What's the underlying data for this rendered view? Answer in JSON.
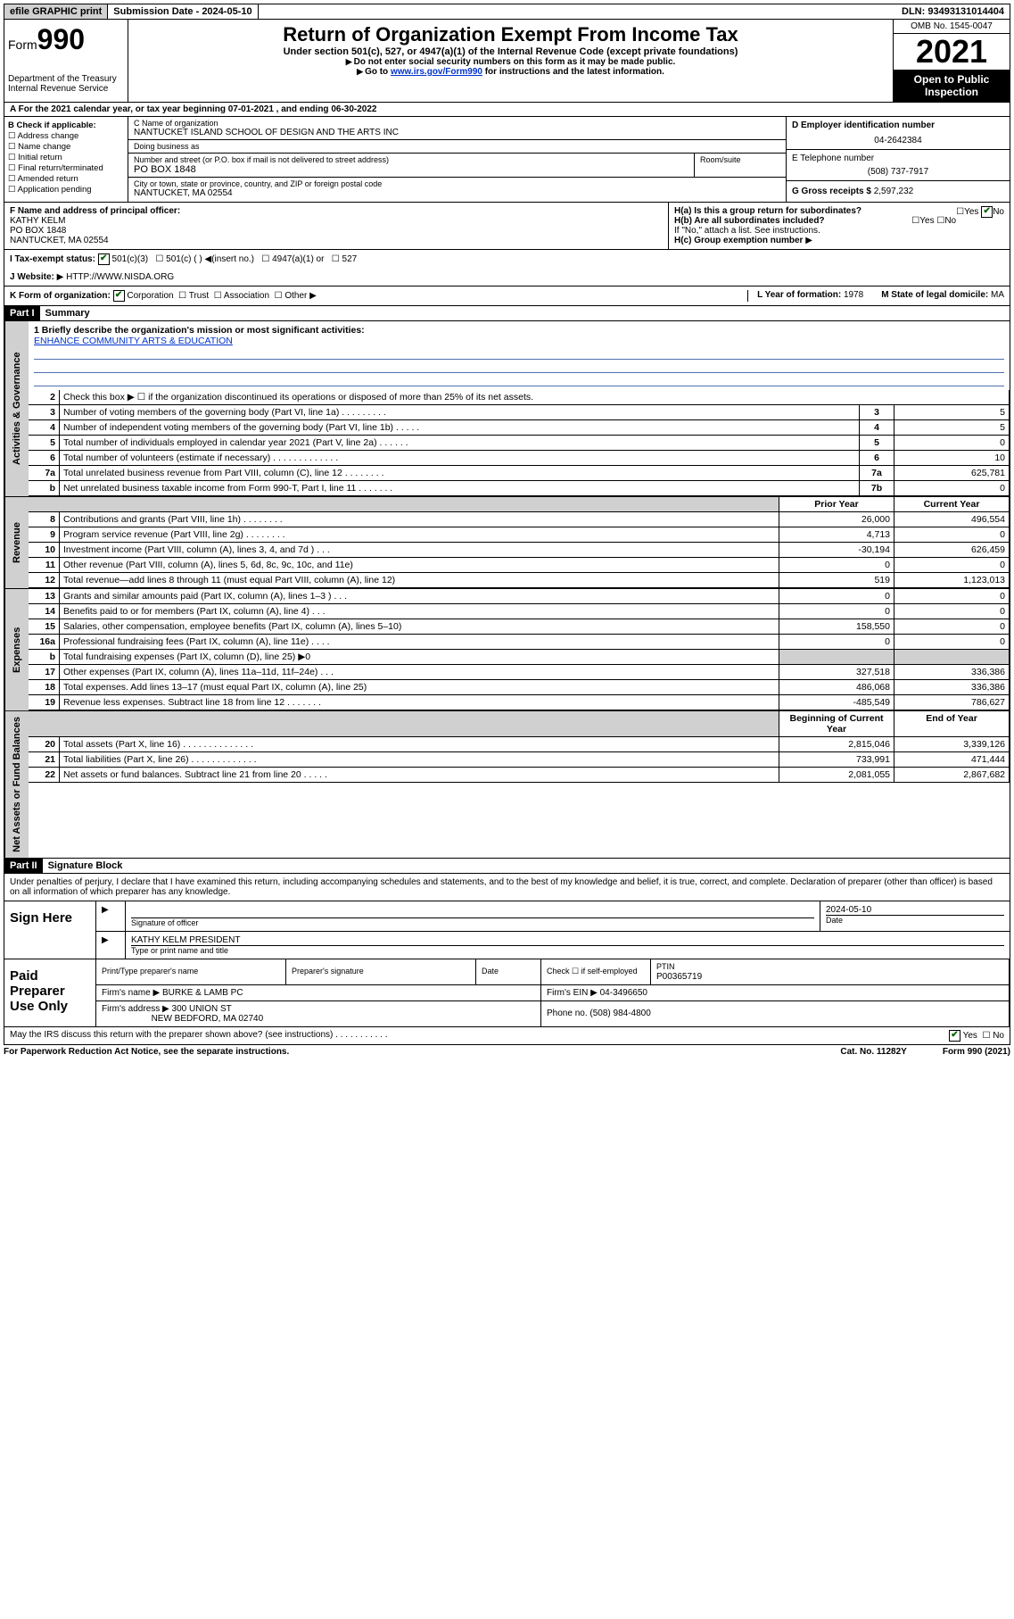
{
  "topbar": {
    "efile_label": "efile GRAPHIC print",
    "submission_label": "Submission Date - 2024-05-10",
    "dln_label": "DLN: 93493131014404"
  },
  "header": {
    "form_prefix": "Form",
    "form_number": "990",
    "dept": "Department of the Treasury",
    "irs": "Internal Revenue Service",
    "title": "Return of Organization Exempt From Income Tax",
    "sub1": "Under section 501(c), 527, or 4947(a)(1) of the Internal Revenue Code (except private foundations)",
    "sub2": "Do not enter social security numbers on this form as it may be made public.",
    "sub3_prefix": "Go to ",
    "sub3_link": "www.irs.gov/Form990",
    "sub3_suffix": " for instructions and the latest information.",
    "omb": "OMB No. 1545-0047",
    "year": "2021",
    "open1": "Open to Public",
    "open2": "Inspection"
  },
  "row_a": "A For the 2021 calendar year, or tax year beginning 07-01-2021   , and ending 06-30-2022",
  "col_b": {
    "label": "B Check if applicable:",
    "opt1": "Address change",
    "opt2": "Name change",
    "opt3": "Initial return",
    "opt4": "Final return/terminated",
    "opt5": "Amended return",
    "opt6": "Application pending"
  },
  "col_c": {
    "name_label": "C Name of organization",
    "name": "NANTUCKET ISLAND SCHOOL OF DESIGN AND THE ARTS INC",
    "dba_label": "Doing business as",
    "dba": "",
    "addr_label": "Number and street (or P.O. box if mail is not delivered to street address)",
    "room_label": "Room/suite",
    "addr": "PO BOX 1848",
    "city_label": "City or town, state or province, country, and ZIP or foreign postal code",
    "city": "NANTUCKET, MA  02554"
  },
  "col_d": {
    "ein_label": "D Employer identification number",
    "ein": "04-2642384",
    "phone_label": "E Telephone number",
    "phone": "(508) 737-7917",
    "gross_label": "G Gross receipts $",
    "gross": "2,597,232"
  },
  "row_f": {
    "label": "F  Name and address of principal officer:",
    "name": "KATHY KELM",
    "addr1": "PO BOX 1848",
    "addr2": "NANTUCKET, MA  02554"
  },
  "row_h": {
    "ha_label": "H(a)  Is this a group return for subordinates?",
    "hb_label": "H(b)  Are all subordinates included?",
    "hb_note": "If \"No,\" attach a list. See instructions.",
    "hc_label": "H(c)  Group exemption number",
    "yes": "Yes",
    "no": "No"
  },
  "row_i": {
    "label": "I  Tax-exempt status:",
    "opt1": "501(c)(3)",
    "opt2": "501(c) (  )",
    "opt2_hint": "(insert no.)",
    "opt3": "4947(a)(1) or",
    "opt4": "527"
  },
  "row_j": {
    "label": "J  Website:",
    "value": "HTTP://WWW.NISDA.ORG"
  },
  "row_k": {
    "label": "K Form of organization:",
    "opt1": "Corporation",
    "opt2": "Trust",
    "opt3": "Association",
    "opt4": "Other",
    "l_label": "L Year of formation:",
    "l_value": "1978",
    "m_label": "M State of legal domicile:",
    "m_value": "MA"
  },
  "part1": {
    "header": "Part I",
    "title": "Summary",
    "side_gov": "Activities & Governance",
    "side_rev": "Revenue",
    "side_exp": "Expenses",
    "side_net": "Net Assets or Fund Balances",
    "mission_label": "1   Briefly describe the organization's mission or most significant activities:",
    "mission": "ENHANCE COMMUNITY ARTS & EDUCATION",
    "prior_year": "Prior Year",
    "current_year": "Current Year",
    "begin_year": "Beginning of Current Year",
    "end_year": "End of Year"
  },
  "gov_lines": [
    {
      "n": "2",
      "d": "Check this box ▶ ☐  if the organization discontinued its operations or disposed of more than 25% of its net assets.",
      "box": "",
      "v": ""
    },
    {
      "n": "3",
      "d": "Number of voting members of the governing body (Part VI, line 1a)   .    .    .    .    .    .    .    .    .",
      "box": "3",
      "v": "5"
    },
    {
      "n": "4",
      "d": "Number of independent voting members of the governing body (Part VI, line 1b)   .    .    .    .    .",
      "box": "4",
      "v": "5"
    },
    {
      "n": "5",
      "d": "Total number of individuals employed in calendar year 2021 (Part V, line 2a)   .    .    .    .    .    .",
      "box": "5",
      "v": "0"
    },
    {
      "n": "6",
      "d": "Total number of volunteers (estimate if necessary)   .    .    .    .    .    .    .    .    .    .    .    .    .",
      "box": "6",
      "v": "10"
    },
    {
      "n": "7a",
      "d": "Total unrelated business revenue from Part VIII, column (C), line 12   .    .    .    .    .    .    .    .",
      "box": "7a",
      "v": "625,781"
    },
    {
      "n": "b",
      "d": "Net unrelated business taxable income from Form 990-T, Part I, line 11   .    .    .    .    .    .    .",
      "box": "7b",
      "v": "0"
    }
  ],
  "rev_lines": [
    {
      "n": "8",
      "d": "Contributions and grants (Part VIII, line 1h)   .    .    .    .    .    .    .    .",
      "p": "26,000",
      "c": "496,554"
    },
    {
      "n": "9",
      "d": "Program service revenue (Part VIII, line 2g)   .    .    .    .    .    .    .    .",
      "p": "4,713",
      "c": "0"
    },
    {
      "n": "10",
      "d": "Investment income (Part VIII, column (A), lines 3, 4, and 7d )   .    .    .",
      "p": "-30,194",
      "c": "626,459"
    },
    {
      "n": "11",
      "d": "Other revenue (Part VIII, column (A), lines 5, 6d, 8c, 9c, 10c, and 11e)",
      "p": "0",
      "c": "0"
    },
    {
      "n": "12",
      "d": "Total revenue—add lines 8 through 11 (must equal Part VIII, column (A), line 12)",
      "p": "519",
      "c": "1,123,013"
    }
  ],
  "exp_lines": [
    {
      "n": "13",
      "d": "Grants and similar amounts paid (Part IX, column (A), lines 1–3 )   .    .    .",
      "p": "0",
      "c": "0"
    },
    {
      "n": "14",
      "d": "Benefits paid to or for members (Part IX, column (A), line 4)   .    .    .",
      "p": "0",
      "c": "0"
    },
    {
      "n": "15",
      "d": "Salaries, other compensation, employee benefits (Part IX, column (A), lines 5–10)",
      "p": "158,550",
      "c": "0"
    },
    {
      "n": "16a",
      "d": "Professional fundraising fees (Part IX, column (A), line 11e)   .    .    .    .",
      "p": "0",
      "c": "0"
    },
    {
      "n": "b",
      "d": "Total fundraising expenses (Part IX, column (D), line 25) ▶0",
      "p": "",
      "c": "",
      "shade": true
    },
    {
      "n": "17",
      "d": "Other expenses (Part IX, column (A), lines 11a–11d, 11f–24e)   .    .    .",
      "p": "327,518",
      "c": "336,386"
    },
    {
      "n": "18",
      "d": "Total expenses. Add lines 13–17 (must equal Part IX, column (A), line 25)",
      "p": "486,068",
      "c": "336,386"
    },
    {
      "n": "19",
      "d": "Revenue less expenses. Subtract line 18 from line 12   .    .    .    .    .    .    .",
      "p": "-485,549",
      "c": "786,627"
    }
  ],
  "net_lines": [
    {
      "n": "20",
      "d": "Total assets (Part X, line 16)   .    .    .    .    .    .    .    .    .    .    .    .    .    .",
      "p": "2,815,046",
      "c": "3,339,126"
    },
    {
      "n": "21",
      "d": "Total liabilities (Part X, line 26)   .    .    .    .    .    .    .    .    .    .    .    .    .",
      "p": "733,991",
      "c": "471,444"
    },
    {
      "n": "22",
      "d": "Net assets or fund balances. Subtract line 21 from line 20   .    .    .    .    .",
      "p": "2,081,055",
      "c": "2,867,682"
    }
  ],
  "part2": {
    "header": "Part II",
    "title": "Signature Block",
    "intro": "Under penalties of perjury, I declare that I have examined this return, including accompanying schedules and statements, and to the best of my knowledge and belief, it is true, correct, and complete. Declaration of preparer (other than officer) is based on all information of which preparer has any knowledge.",
    "sign_here": "Sign Here",
    "sig_officer": "Signature of officer",
    "sig_date_label": "Date",
    "sig_date": "2024-05-10",
    "sig_name": "KATHY KELM  PRESIDENT",
    "sig_name_label": "Type or print name and title",
    "paid": "Paid Preparer Use Only",
    "prep_name_label": "Print/Type preparer's name",
    "prep_sig_label": "Preparer's signature",
    "date_label": "Date",
    "check_label": "Check ☐ if self-employed",
    "ptin_label": "PTIN",
    "ptin": "P00365719",
    "firm_name_label": "Firm's name    ▶",
    "firm_name": "BURKE & LAMB PC",
    "firm_ein_label": "Firm's EIN ▶",
    "firm_ein": "04-3496650",
    "firm_addr_label": "Firm's address ▶",
    "firm_addr1": "300 UNION ST",
    "firm_addr2": "NEW BEDFORD, MA  02740",
    "firm_phone_label": "Phone no.",
    "firm_phone": "(508) 984-4800",
    "discuss": "May the IRS discuss this return with the preparer shown above? (see instructions)   .    .    .    .    .    .    .    .    .    .    ."
  },
  "footer": {
    "left": "For Paperwork Reduction Act Notice, see the separate instructions.",
    "mid": "Cat. No. 11282Y",
    "right": "Form 990 (2021)"
  },
  "colors": {
    "link": "#0033cc",
    "line": "#5070b0",
    "shade": "#d0d0d0",
    "check": "#006400"
  }
}
